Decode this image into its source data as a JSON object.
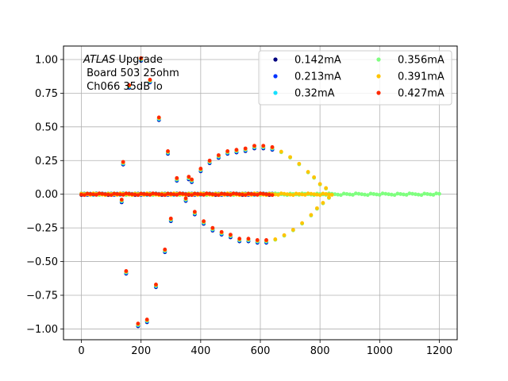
{
  "chart_data": {
    "type": "scatter",
    "annotation": {
      "line1_italic": "ATLAS",
      "line1_rest": " Upgrade",
      "line2": " Board 503 25ohm",
      "line3": " Ch066 35dB lo"
    },
    "xlim": [
      -60,
      1260
    ],
    "ylim": [
      -1.08,
      1.1
    ],
    "xticks": [
      0,
      200,
      400,
      600,
      800,
      1000,
      1200
    ],
    "xtick_labels": [
      "0",
      "200",
      "400",
      "600",
      "800",
      "1000",
      "1200"
    ],
    "yticks": [
      -1.0,
      -0.75,
      -0.5,
      -0.25,
      0.0,
      0.25,
      0.5,
      0.75,
      1.0
    ],
    "ytick_labels": [
      "−1.00",
      "−0.75",
      "−0.50",
      "−0.25",
      "0.00",
      "0.25",
      "0.50",
      "0.75",
      "1.00"
    ],
    "grid": true,
    "legend_position": "top-right",
    "legend_columns": 2,
    "series": [
      {
        "name": "0.142mA",
        "color": "#00007f",
        "xmax": 640
      },
      {
        "name": "0.213mA",
        "color": "#0033ff",
        "xmax": 640
      },
      {
        "name": "0.32mA",
        "color": "#16e0ff",
        "xmax": 640
      },
      {
        "name": "0.356mA",
        "color": "#7fff7f",
        "xmax": 1200
      },
      {
        "name": "0.391mA",
        "color": "#ffc400",
        "xmax": 840
      },
      {
        "name": "0.427mA",
        "color": "#ff2a00",
        "xmax": 640
      }
    ],
    "pulse_points": [
      [
        140,
        0.23
      ],
      [
        135,
        -0.05
      ],
      [
        150,
        -0.58
      ],
      [
        160,
        0.8
      ],
      [
        190,
        -0.97
      ],
      [
        200,
        1.0
      ],
      [
        220,
        -0.94
      ],
      [
        230,
        0.84
      ],
      [
        250,
        -0.68
      ],
      [
        260,
        0.56
      ],
      [
        280,
        -0.42
      ],
      [
        290,
        0.31
      ],
      [
        300,
        -0.19
      ],
      [
        320,
        0.11
      ],
      [
        350,
        -0.04
      ],
      [
        360,
        0.12
      ],
      [
        370,
        0.1
      ],
      [
        380,
        -0.14
      ],
      [
        400,
        0.18
      ],
      [
        410,
        -0.21
      ],
      [
        430,
        0.24
      ],
      [
        440,
        -0.26
      ],
      [
        460,
        0.28
      ],
      [
        470,
        -0.29
      ],
      [
        490,
        0.31
      ],
      [
        500,
        -0.31
      ],
      [
        520,
        0.32
      ],
      [
        530,
        -0.34
      ],
      [
        550,
        0.33
      ],
      [
        560,
        -0.34
      ],
      [
        580,
        0.35
      ],
      [
        590,
        -0.35
      ],
      [
        610,
        0.35
      ],
      [
        620,
        -0.35
      ],
      [
        640,
        0.34
      ],
      [
        650,
        -0.34
      ],
      [
        670,
        0.31
      ],
      [
        680,
        -0.31
      ],
      [
        700,
        0.27
      ],
      [
        710,
        -0.27
      ],
      [
        730,
        0.22
      ],
      [
        740,
        -0.22
      ],
      [
        760,
        0.16
      ],
      [
        770,
        -0.16
      ],
      [
        780,
        0.12
      ],
      [
        790,
        -0.11
      ],
      [
        800,
        0.07
      ],
      [
        810,
        -0.07
      ],
      [
        820,
        0.04
      ],
      [
        830,
        -0.03
      ]
    ]
  }
}
